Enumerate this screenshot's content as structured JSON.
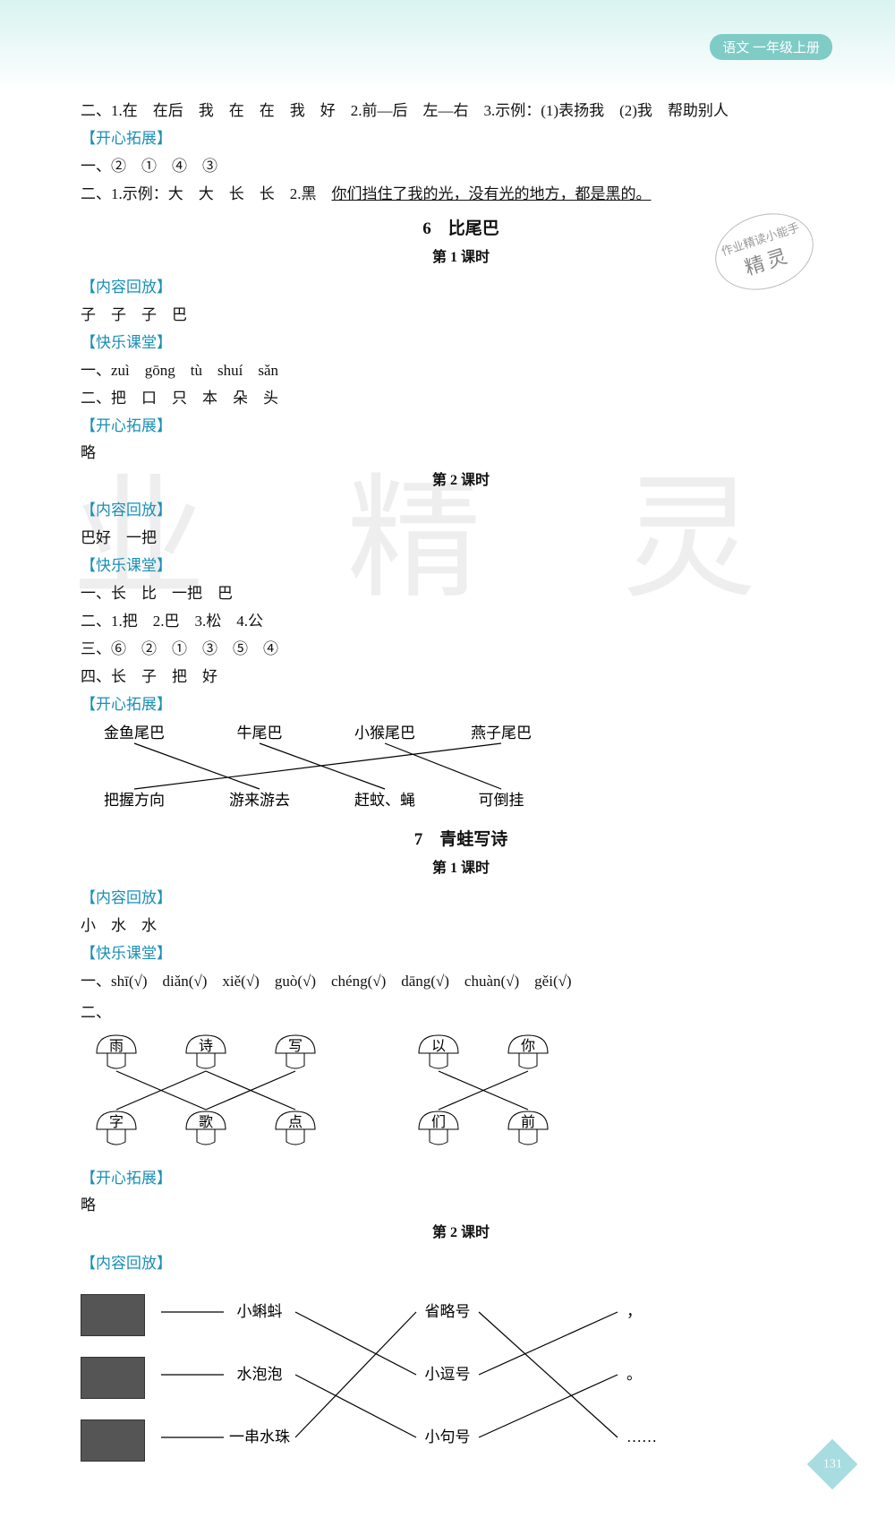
{
  "header": {
    "subject": "语文",
    "grade": "一年级上册"
  },
  "watermark": "业 精 灵",
  "stamp": {
    "top": "作业精读小能手",
    "main": "精灵"
  },
  "page_number": "131",
  "intro_lines": [
    "二、1.在　在后　我　在　在　我　好　2.前—后　左—右　3.示例：(1)表扬我　(2)我　帮助别人"
  ],
  "labels": {
    "kxtz": "【开心拓展】",
    "nrhf": "【内容回放】",
    "klkt": "【快乐课堂】"
  },
  "block1": {
    "l1": "一、②　①　④　③",
    "l2": "二、1.示例：大　大　长　长　2.黑　",
    "l2u": "你们挡住了我的光，没有光的地方，都是黑的。"
  },
  "lesson6": {
    "title": "6　比尾巴",
    "sub1": "第 1 课时",
    "nrhf": "子　子　子　巴",
    "kl1": "一、zuì　gōng　tù　shuí　sǎn",
    "kl2": "二、把　口　只　本　朵　头",
    "kxtz": "略",
    "sub2": "第 2 课时",
    "nrhf2": "巴好　一把",
    "kl2_1": "一、长　比　一把　巴",
    "kl2_2": "二、1.把　2.巴　3.松　4.公",
    "kl2_3": "三、⑥　②　①　③　⑤　④",
    "kl2_4": "四、长　子　把　好"
  },
  "match1": {
    "top": [
      "金鱼尾巴",
      "牛尾巴",
      "小猴尾巴",
      "燕子尾巴"
    ],
    "bottom": [
      "把握方向",
      "游来游去",
      "赶蚊、蝇",
      "可倒挂"
    ],
    "edges": [
      [
        0,
        1
      ],
      [
        1,
        2
      ],
      [
        2,
        3
      ],
      [
        3,
        0
      ]
    ],
    "stroke": "#000000"
  },
  "lesson7": {
    "title": "7　青蛙写诗",
    "sub1": "第 1 课时",
    "nrhf": "小　水　水",
    "kl1": "一、shī(√)　diǎn(√)　xiě(√)　guò(√)　chéng(√)　dāng(√)　chuàn(√)　gěi(√)",
    "kl2_prefix": "二、"
  },
  "mushrooms": {
    "row1": [
      "雨",
      "诗",
      "写",
      "以",
      "你"
    ],
    "row2": [
      "字",
      "歌",
      "点",
      "们",
      "前"
    ],
    "groupA_top_idx": [
      0,
      1,
      2
    ],
    "groupA_bot_idx": [
      0,
      1,
      2
    ],
    "groupA_edges": [
      [
        0,
        1
      ],
      [
        1,
        0
      ],
      [
        1,
        2
      ],
      [
        2,
        1
      ]
    ],
    "groupB_top_idx": [
      3,
      4
    ],
    "groupB_bot_idx": [
      3,
      4
    ],
    "groupB_edges": [
      [
        3,
        4
      ],
      [
        4,
        3
      ]
    ],
    "stroke": "#000000"
  },
  "kxtz7": "略",
  "sub2_7": "第 2 课时",
  "match2": {
    "leftLabels": [
      "小蝌蚪",
      "水泡泡",
      "一串水珠"
    ],
    "midLabels": [
      "省略号",
      "小逗号",
      "小句号"
    ],
    "rightLabels": [
      "，",
      "。",
      "……"
    ],
    "edgesLM": [
      [
        0,
        1
      ],
      [
        1,
        2
      ],
      [
        2,
        0
      ]
    ],
    "edgesMR": [
      [
        0,
        2
      ],
      [
        1,
        0
      ],
      [
        2,
        1
      ]
    ],
    "stroke": "#000000"
  }
}
